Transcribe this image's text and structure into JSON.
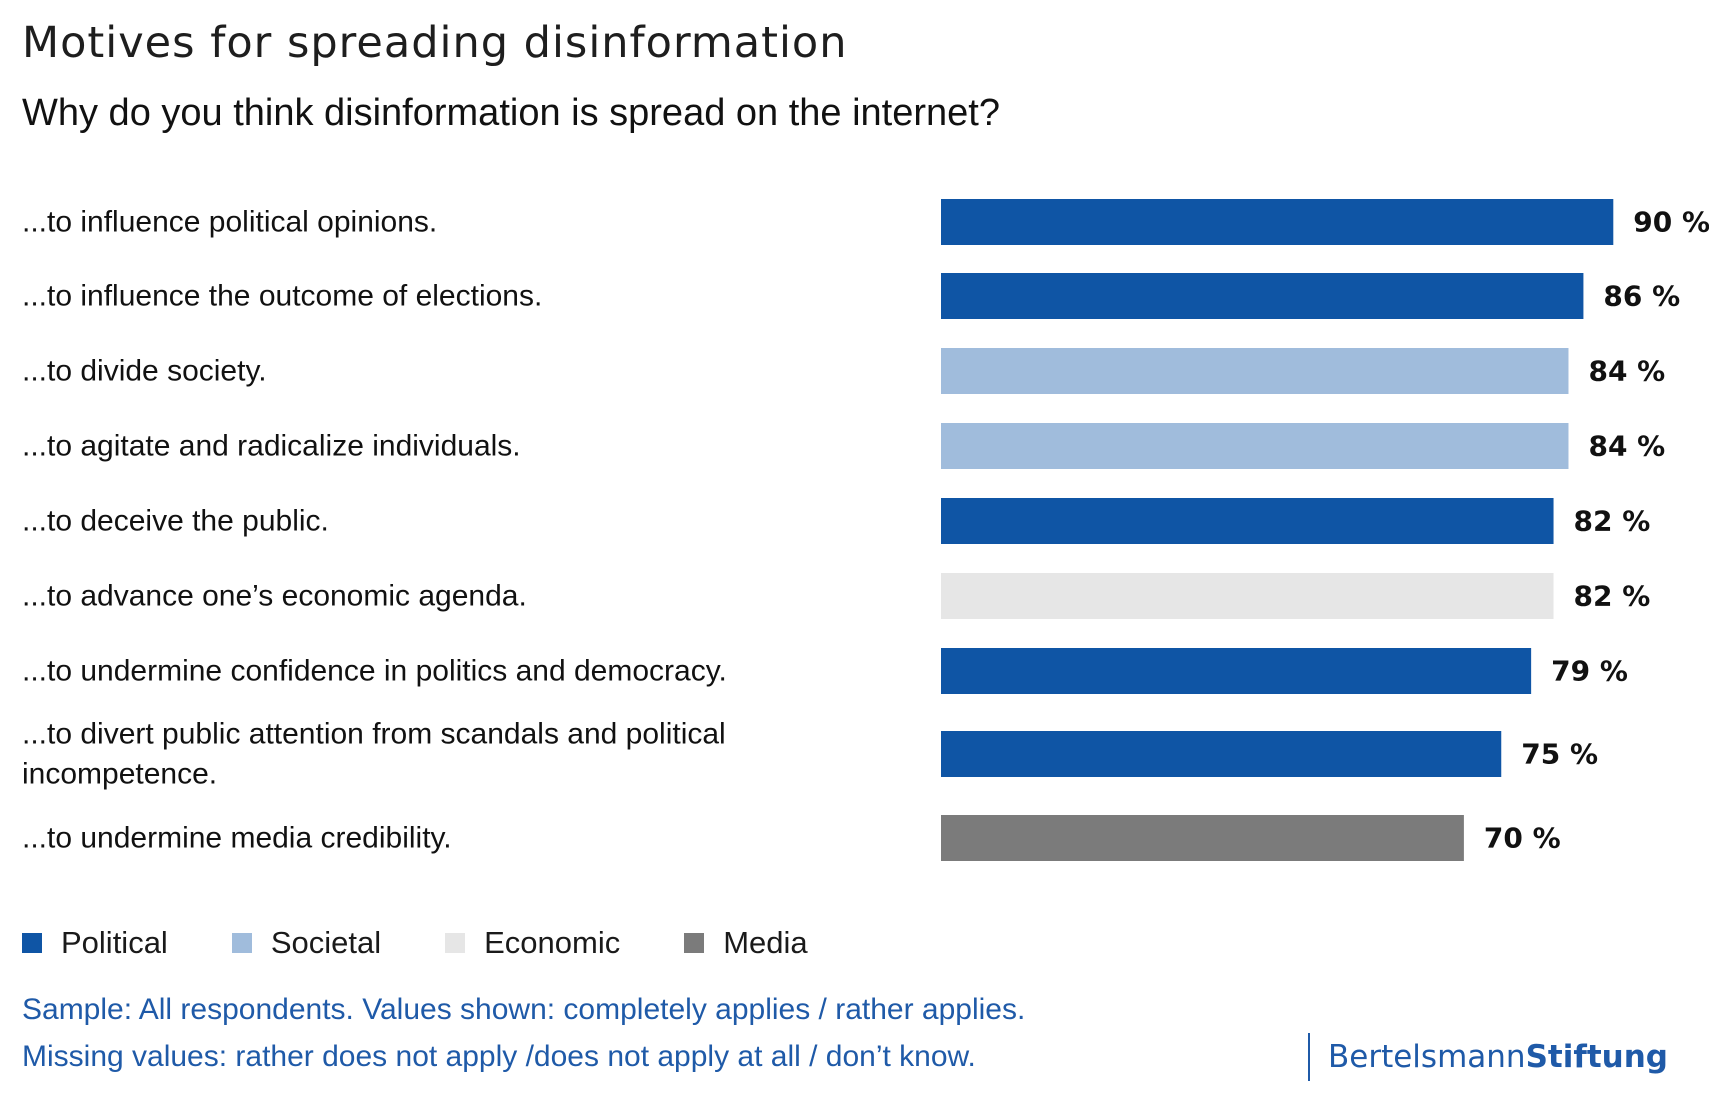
{
  "header": {
    "title": "Motives for spreading disinformation",
    "subtitle": "Why do you think disinformation is spread on the internet?"
  },
  "colors": {
    "political": "#0f55a5",
    "societal": "#a0bcdc",
    "economic": "#e6e6e6",
    "media": "#7b7b7b"
  },
  "chart_data": {
    "type": "bar",
    "orientation": "horizontal",
    "title": "Motives for spreading disinformation",
    "subtitle": "Why do you think disinformation is spread on the internet?",
    "unit": "%",
    "categories": [
      [
        "...to influence political opinions."
      ],
      [
        "...to influence the outcome of elections."
      ],
      [
        "...to divide society."
      ],
      [
        "...to agitate and radicalize individuals."
      ],
      [
        "...to deceive the public."
      ],
      [
        "...to advance one’s economic agenda."
      ],
      [
        "...to undermine confidence in politics and democracy."
      ],
      [
        "...to divert public attention from scandals and political",
        "incompetence."
      ],
      [
        "...to undermine media credibility."
      ]
    ],
    "values": [
      90,
      86,
      84,
      84,
      82,
      82,
      79,
      75,
      70
    ],
    "value_labels": [
      "90 %",
      "86 %",
      "84 %",
      "84 %",
      "82 %",
      "82 %",
      "79 %",
      "75 %",
      "70 %"
    ],
    "groups": [
      "Political",
      "Political",
      "Societal",
      "Societal",
      "Political",
      "Economic",
      "Political",
      "Political",
      "Media"
    ],
    "legend": [
      "Political",
      "Societal",
      "Economic",
      "Media"
    ],
    "legend_position": "bottom-left",
    "grid": false
  },
  "legend": {
    "items": [
      {
        "label": "Political",
        "color": "#0f55a5"
      },
      {
        "label": "Societal",
        "color": "#a0bcdc"
      },
      {
        "label": "Economic",
        "color": "#e6e6e6"
      },
      {
        "label": "Media",
        "color": "#7b7b7b"
      }
    ]
  },
  "footnote": {
    "line1": "Sample: All respondents. Values shown: completely applies / rather applies.",
    "line2": "Missing values: rather does not apply /does not apply at all / don’t know."
  },
  "logo": {
    "part1": "Bertelsmann",
    "part2": "Stiftung"
  }
}
